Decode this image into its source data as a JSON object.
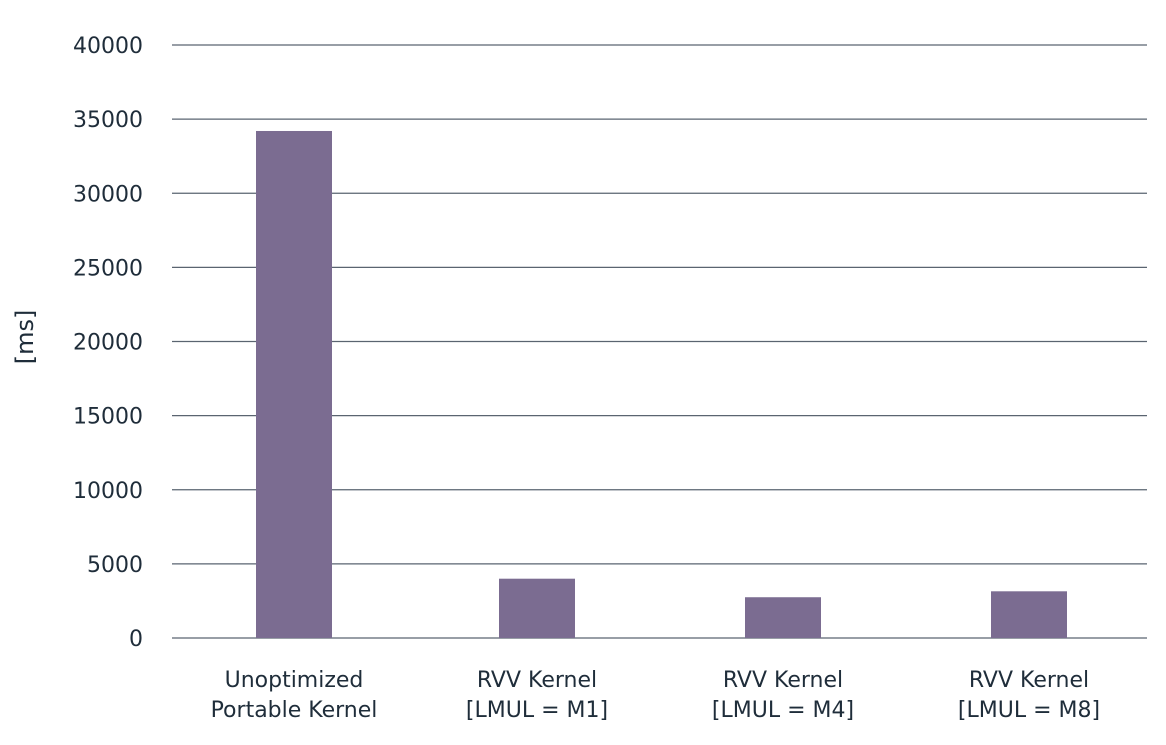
{
  "chart_data": {
    "type": "bar",
    "title": "",
    "xlabel": "",
    "ylabel": "[ms]",
    "ylim": [
      0,
      40000
    ],
    "yticks": [
      0,
      5000,
      10000,
      15000,
      20000,
      25000,
      30000,
      35000,
      40000
    ],
    "grid": true,
    "legend": "none",
    "categories": [
      [
        "Unoptimized",
        "Portable Kernel"
      ],
      [
        "RVV Kernel",
        "[LMUL = M1]"
      ],
      [
        "RVV Kernel",
        "[LMUL = M4]"
      ],
      [
        "RVV Kernel",
        "[LMUL = M8]"
      ]
    ],
    "values": [
      34200,
      4000,
      2750,
      3150
    ],
    "colors": {
      "bar": "#7b6c91",
      "grid": "#5a6470",
      "text": "#1f2d3a"
    }
  }
}
